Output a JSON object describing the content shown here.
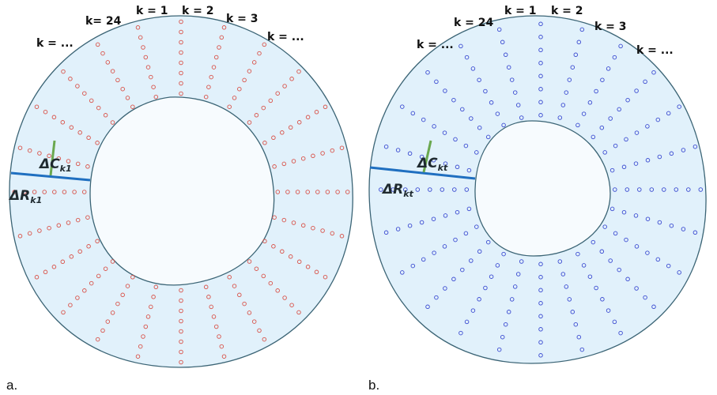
{
  "colors": {
    "ring_fill": "#e1f1fb",
    "ring_stroke": "#3b6475",
    "inner_fill": "#f7fbfe",
    "panel_a_points": "#d9534a",
    "panel_b_points": "#3b4bd1",
    "radial_segment": "#1f6fc0",
    "circumferential_segment": "#6aa84f"
  },
  "panel_a": {
    "caption": "a.",
    "k_labels": [
      "k = 1",
      "k = 2",
      "k = 3",
      "k = ...",
      "k= 24",
      "k = ..."
    ],
    "delta_c": {
      "main": "ΔC",
      "sub": "k1"
    },
    "delta_r": {
      "main": "ΔR",
      "sub": "k1"
    },
    "point_style": "open-circle",
    "spokes": 24,
    "points_per_spoke": 8
  },
  "panel_b": {
    "caption": "b.",
    "k_labels": [
      "k = 1",
      "k = 2",
      "k = 3",
      "k = ...",
      "k = 24",
      "k = ..."
    ],
    "delta_c": {
      "main": "ΔC",
      "sub": "kt"
    },
    "delta_r": {
      "main": "ΔR",
      "sub": "kt"
    },
    "point_style": "open-circle",
    "spokes": 24,
    "points_per_spoke": 8
  }
}
